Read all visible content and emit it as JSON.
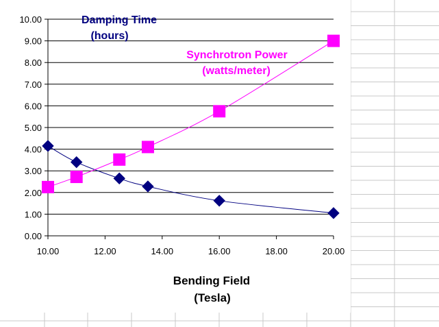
{
  "chart_data": {
    "type": "scatter",
    "title": "",
    "xlabel": "Bending Field",
    "xlabel_unit": "(Tesla)",
    "ylabel": "",
    "xlim": [
      10,
      20
    ],
    "ylim": [
      0,
      10
    ],
    "x_ticks": [
      "10.00",
      "12.00",
      "14.00",
      "16.00",
      "18.00",
      "20.00"
    ],
    "y_ticks": [
      "0.00",
      "1.00",
      "2.00",
      "3.00",
      "4.00",
      "5.00",
      "6.00",
      "7.00",
      "8.00",
      "9.00",
      "10.00"
    ],
    "grid": "horizontal",
    "legend": "none",
    "series": [
      {
        "name": "Damping Time",
        "unit": "(hours)",
        "color": "#000080",
        "marker": "diamond",
        "x": [
          10,
          11,
          12.5,
          13.5,
          16,
          20
        ],
        "y": [
          4.15,
          3.4,
          2.65,
          2.28,
          1.62,
          1.05
        ]
      },
      {
        "name": "Synchrotron Power",
        "unit": "(watts/meter)",
        "color": "#ff00ff",
        "marker": "square",
        "x": [
          10,
          11,
          12.5,
          13.5,
          16,
          20
        ],
        "y": [
          2.25,
          2.72,
          3.52,
          4.1,
          5.75,
          9.0
        ]
      }
    ]
  }
}
